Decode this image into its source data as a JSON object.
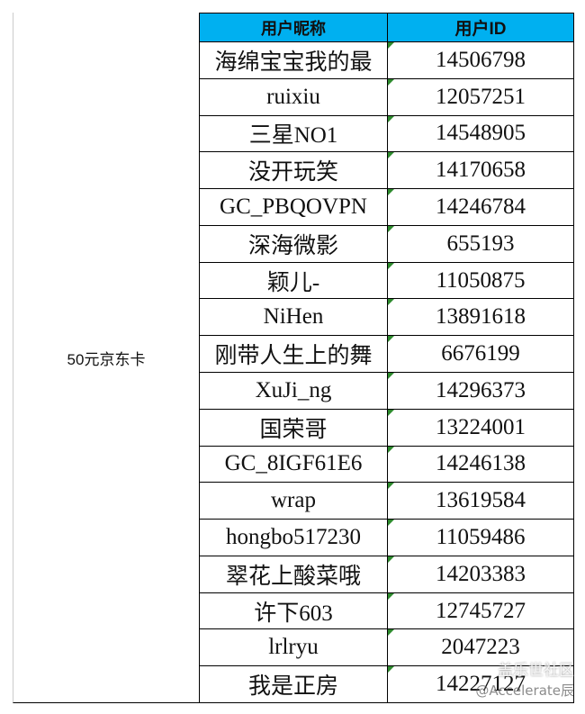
{
  "table": {
    "group": "50元京东卡",
    "columns": [
      "用户昵称",
      "用户ID"
    ],
    "rows": [
      [
        "海绵宝宝我的最",
        "14506798"
      ],
      [
        "ruixiu",
        "12057251"
      ],
      [
        "三星NO1",
        "14548905"
      ],
      [
        "没开玩笑",
        "14170658"
      ],
      [
        "GC_PBQOVPN",
        "14246784"
      ],
      [
        "深海微影",
        "655193"
      ],
      [
        "颖儿-",
        "11050875"
      ],
      [
        "NiHen",
        "13891618"
      ],
      [
        "刚带人生上的舞",
        "6676199"
      ],
      [
        "XuJi_ng",
        "14296373"
      ],
      [
        "国荣哥",
        "13224001"
      ],
      [
        "GC_8IGF61E6",
        "14246138"
      ],
      [
        "wrap",
        "13619584"
      ],
      [
        "hongbo517230",
        "11059486"
      ],
      [
        "翠花上酸菜哦",
        "14203383"
      ],
      [
        "许下603",
        "12745727"
      ],
      [
        "lrlryu",
        "2047223"
      ],
      [
        "我是正房",
        "14227127"
      ]
    ]
  },
  "watermark": {
    "site": "盖乐世社区",
    "user": "@Accelerate辰"
  }
}
